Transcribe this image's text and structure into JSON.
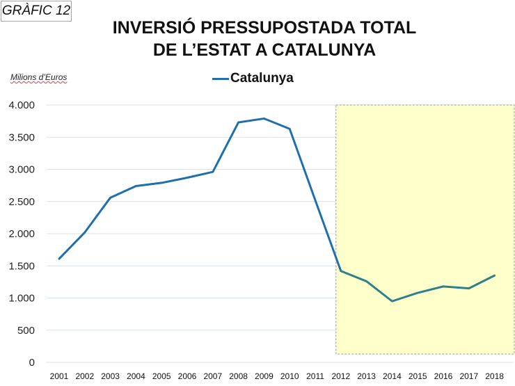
{
  "badge": "GRÀFIC 12",
  "chart_data": {
    "type": "line",
    "title_line1": "INVERSIÓ PRESSUPOSTADA TOTAL",
    "title_line2": "DE L’ESTAT A CATALUNYA",
    "ylabel": "Milions d’Euros",
    "xlabel": "",
    "ylim": [
      0,
      4000
    ],
    "yticks": [
      0,
      500,
      1000,
      1500,
      2000,
      2500,
      3000,
      3500,
      4000
    ],
    "ytick_labels": [
      "0",
      "500",
      "1.000",
      "1.500",
      "2.000",
      "2.500",
      "3.000",
      "3.500",
      "4.000"
    ],
    "grid": true,
    "legend_position": "top-center",
    "x": [
      "2001",
      "2002",
      "2003",
      "2004",
      "2005",
      "2006",
      "2007",
      "2008",
      "2009",
      "2010",
      "2011",
      "2012",
      "2013",
      "2014",
      "2015",
      "2016",
      "2017",
      "2018"
    ],
    "series": [
      {
        "name": "Catalunya",
        "color": "#1f6fad",
        "values": [
          1610,
          2020,
          2560,
          2740,
          2790,
          2870,
          2960,
          3730,
          3790,
          3630,
          2520,
          1420,
          1260,
          950,
          1080,
          1180,
          1150,
          1350
        ]
      }
    ],
    "highlight": {
      "from": "2012",
      "to": "2018",
      "color": "#ffffcc",
      "line_color_in_highlight": "#2e7f8c"
    }
  }
}
